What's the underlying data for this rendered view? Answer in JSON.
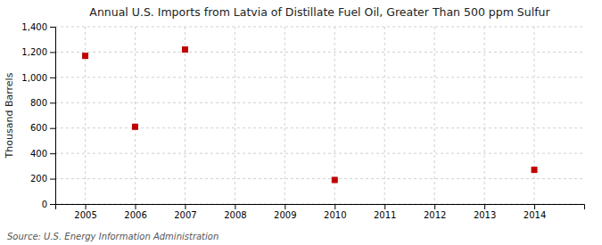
{
  "chart_data": {
    "type": "scatter",
    "title": "Annual U.S. Imports from Latvia of Distillate Fuel Oil, Greater Than 500 ppm Sulfur",
    "ylabel": "Thousand Barrels",
    "annotation": "Source: U.S. Energy Information Administration",
    "x": [
      2005,
      2006,
      2007,
      2010,
      2014
    ],
    "values": [
      1170,
      610,
      1220,
      190,
      270
    ],
    "color": "#c00000",
    "marker": "square",
    "xlim": [
      2004.4,
      2015.0
    ],
    "ylim": [
      0,
      1400
    ],
    "xticks": [
      2005,
      2006,
      2007,
      2008,
      2009,
      2010,
      2011,
      2012,
      2013,
      2014
    ],
    "yticks": [
      0,
      200,
      400,
      600,
      800,
      {
        "value": 1000,
        "label": "1,000"
      },
      {
        "value": 1200,
        "label": "1,200"
      },
      {
        "value": 1400,
        "label": "1,400"
      }
    ],
    "grid": true
  }
}
